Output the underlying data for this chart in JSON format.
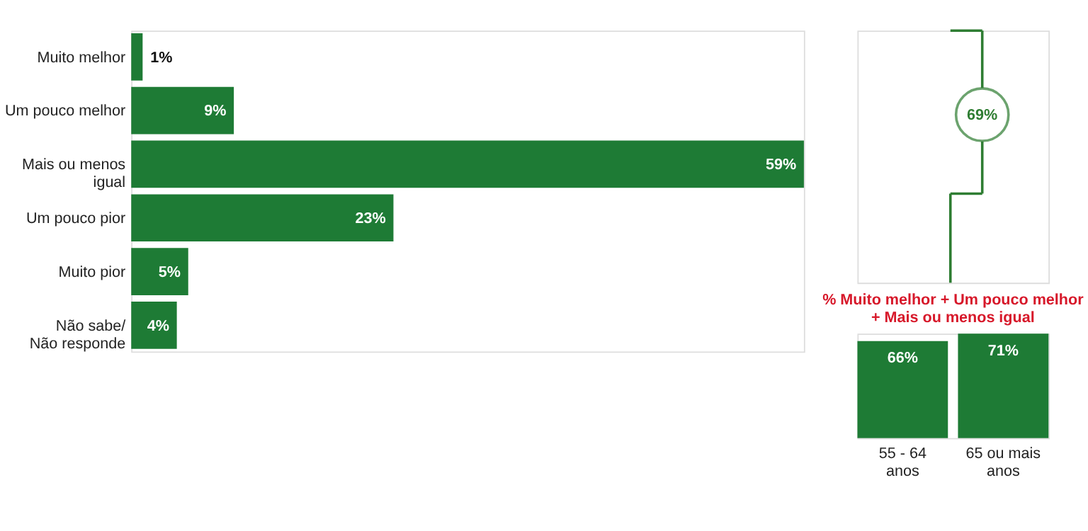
{
  "chart_data": [
    {
      "type": "bar",
      "orientation": "horizontal",
      "categories": [
        "Muito melhor",
        "Um pouco melhor",
        "Mais ou menos\nigual",
        "Um pouco pior",
        "Muito pior",
        "Não sabe/\nNão responde"
      ],
      "values": [
        1,
        9,
        59,
        23,
        5,
        4
      ],
      "color": "#1e7b35",
      "value_labels": [
        "1%",
        "9%",
        "59%",
        "23%",
        "5%",
        "4%"
      ],
      "annotations": [
        "69%"
      ]
    },
    {
      "type": "bar",
      "title": "% Muito melhor + Um pouco melhor\n+ Mais ou menos igual",
      "categories": [
        "55 - 64\nanos",
        "65 ou mais\nanos"
      ],
      "values": [
        66,
        71
      ],
      "color": "#1e7b35",
      "value_labels": [
        "66%",
        "71%"
      ]
    }
  ]
}
